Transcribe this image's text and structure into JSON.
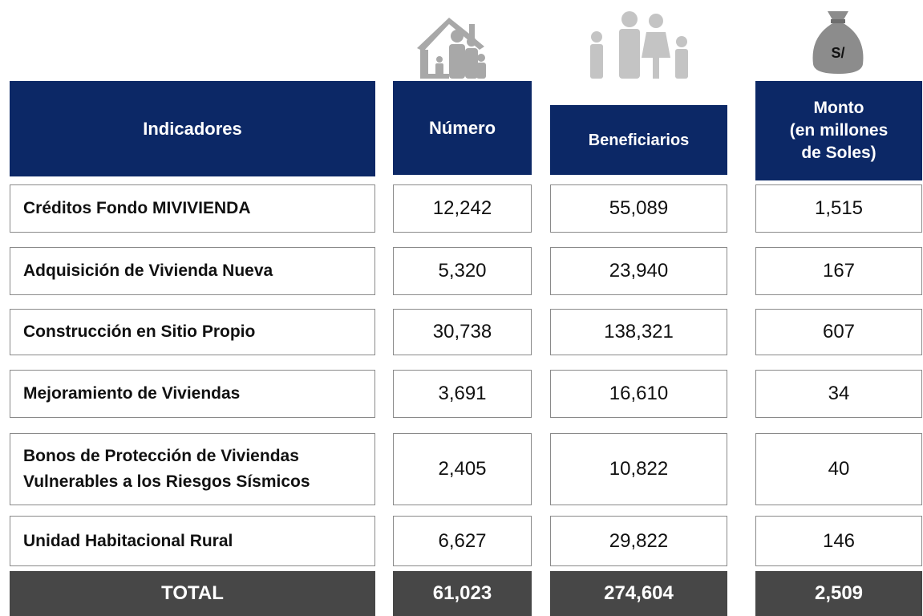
{
  "header": {
    "indicadores": "Indicadores",
    "numero": "Número",
    "beneficiarios": "Beneficiarios",
    "monto": [
      "Monto",
      "(en millones",
      "de Soles)"
    ]
  },
  "icons": {
    "money_label": "S/"
  },
  "rows": [
    {
      "label": [
        "Créditos Fondo MIVIVIENDA"
      ],
      "numero": "12,242",
      "beneficiarios": "55,089",
      "monto": "1,515"
    },
    {
      "label": [
        "Adquisición de Vivienda Nueva"
      ],
      "numero": "5,320",
      "beneficiarios": "23,940",
      "monto": "167"
    },
    {
      "label": [
        "Construcción en Sitio Propio"
      ],
      "numero": "30,738",
      "beneficiarios": "138,321",
      "monto": "607"
    },
    {
      "label": [
        "Mejoramiento de Viviendas"
      ],
      "numero": "3,691",
      "beneficiarios": "16,610",
      "monto": "34"
    },
    {
      "label": [
        "Bonos de Protección de Viviendas",
        "Vulnerables a los Riesgos Sísmicos"
      ],
      "numero": "2,405",
      "beneficiarios": "10,822",
      "monto": "40"
    },
    {
      "label": [
        "Unidad Habitacional Rural"
      ],
      "numero": "6,627",
      "beneficiarios": "29,822",
      "monto": "146"
    }
  ],
  "total": {
    "label": "TOTAL",
    "numero": "61,023",
    "beneficiarios": "274,604",
    "monto": "2,509"
  }
}
